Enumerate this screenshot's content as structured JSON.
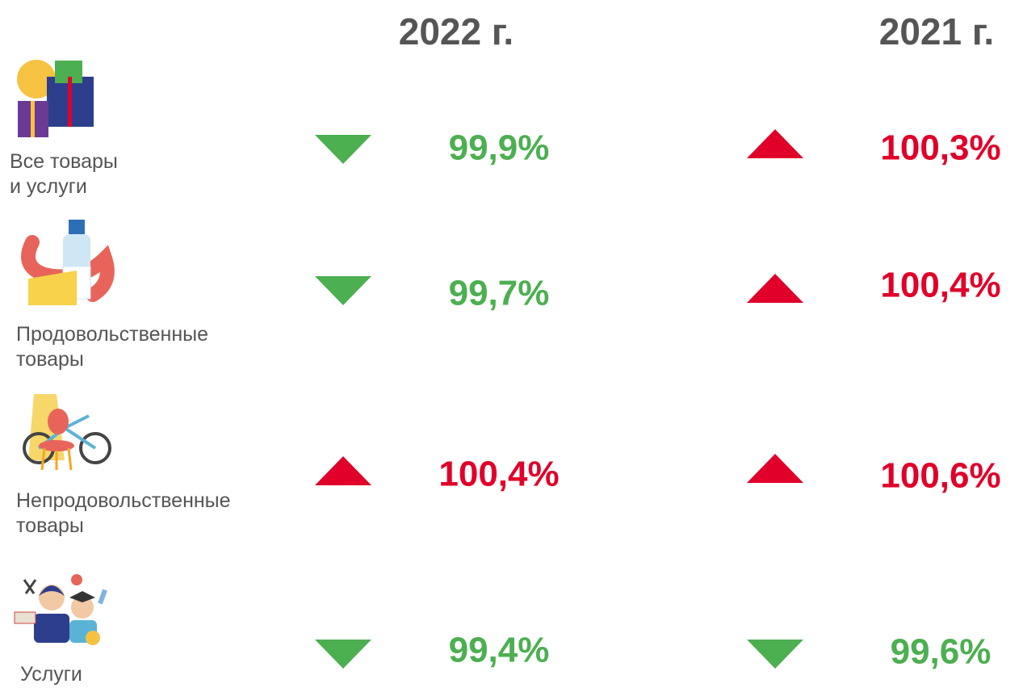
{
  "header": {
    "columns": [
      "2022 г.",
      "2021 г."
    ]
  },
  "colors": {
    "up": "#e0002a",
    "down": "#4caf50"
  },
  "rows": [
    {
      "label": [
        "Все товары",
        "и услуги"
      ],
      "cells": [
        {
          "value": "99,9%",
          "trend": "down"
        },
        {
          "value": "100,3%",
          "trend": "up"
        }
      ]
    },
    {
      "label": [
        "Продовольственные",
        "товары"
      ],
      "cells": [
        {
          "value": "99,7%",
          "trend": "down"
        },
        {
          "value": "100,4%",
          "trend": "up"
        }
      ]
    },
    {
      "label": [
        "Непродовольственные",
        "товары"
      ],
      "cells": [
        {
          "value": "100,4%",
          "trend": "up"
        },
        {
          "value": "100,6%",
          "trend": "up"
        }
      ]
    },
    {
      "label": [
        "Услуги"
      ],
      "cells": [
        {
          "value": "99,4%",
          "trend": "down"
        },
        {
          "value": "99,6%",
          "trend": "down"
        }
      ]
    }
  ]
}
